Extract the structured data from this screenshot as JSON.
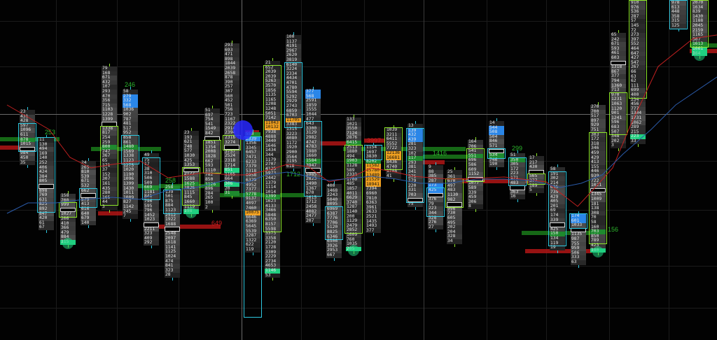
{
  "chart_data": {
    "type": "table",
    "colors": {
      "value_area_cyan": "#2ec8e0",
      "value_area_lime": "#8ee82a",
      "ask_imbalance": "#1f7ee8",
      "bid_imbalance": "#f0a020",
      "volume_green": "#1a7a1a",
      "volume_red": "#b01515",
      "close_marker": "#20d080",
      "ma_red": "#c02020",
      "ma_blue": "#2a5aa8",
      "poc_outline": "#dddddd"
    },
    "labels": [
      "253",
      "246",
      "258",
      "649",
      "1712",
      "3997",
      "1416",
      "299",
      "156"
    ],
    "columns": [
      {
        "values": [
          23,
          431,
          428,
          597,
          1096,
          611,
          878,
          1015,
          null,
          984,
          450,
          35
        ],
        "hl": [
          [
            6,
            "g"
          ]
        ]
      },
      {
        "values": [
          11,
          130,
          494,
          169,
          140,
          252,
          406,
          424,
          384,
          805,
          null,
          898,
          769,
          631,
          825,
          892,
          847,
          420,
          61,
          67
        ],
        "hl": []
      },
      {
        "values": [
          158,
          708,
          999,
          null,
          1027,
          206,
          410,
          366,
          479,
          884,
          115
        ],
        "hl": [
          [
            10,
            "c"
          ]
        ]
      },
      {
        "values": [
          24,
          265,
          810,
          539,
          671,
          532,
          662,
          null,
          579,
          413,
          616,
          640,
          679,
          140
        ],
        "hl": []
      },
      {
        "values": [
          79,
          168,
          671,
          432,
          107,
          293,
          470,
          356,
          715,
          1103,
          1228,
          1399,
          null,
          1338,
          817,
          254,
          259,
          800,
          747,
          367,
          65,
          171,
          37,
          152,
          307,
          161,
          435,
          280,
          165,
          44,
          3
        ],
        "hl": [
          [
            17,
            "g"
          ]
        ]
      },
      {
        "values": [
          58,
          279,
          332,
          568,
          1036,
          902,
          787,
          481,
          517,
          952,
          858,
          861,
          1480,
          1569,
          1338,
          1123,
          1275,
          1020,
          1190,
          1096,
          1399,
          1430,
          1011,
          1009,
          827,
          1142,
          245,
          7
        ],
        "hl": [
          [
            1,
            "b"
          ],
          [
            2,
            "b"
          ],
          [
            3,
            "b"
          ],
          [
            12,
            "g"
          ]
        ]
      },
      {
        "values": [
          49,
          75,
          17,
          38,
          310,
          506,
          509,
          669,
          1181,
          841,
          796,
          595,
          796,
          1452,
          1023,
          null,
          2211,
          323,
          409,
          292
        ],
        "hl": [
          [
            7,
            "g"
          ]
        ]
      },
      {
        "values": [
          258,
          139,
          501,
          875,
          884,
          1123,
          2512,
          1922,
          1688,
          null,
          2548,
          2097,
          1618,
          1141,
          1125,
          1024,
          474,
          841,
          323,
          28
        ],
        "hl": [
          [
            0,
            "g"
          ]
        ]
      },
      {
        "values": [
          23,
          193,
          621,
          748,
          577,
          1030,
          425,
          1353,
          null,
          2177,
          1588,
          1625,
          1826,
          1115,
          845,
          1660,
          1119,
          198
        ],
        "hl": [
          [
            11,
            "g"
          ],
          [
            17,
            "c"
          ]
        ]
      },
      {
        "values": [
          51,
          697,
          754,
          541,
          1549,
          842,
          null,
          1851,
          1354,
          2008,
          1828,
          662,
          593,
          1110,
          782,
          850,
          1126,
          896,
          284,
          265,
          100,
          2
        ],
        "hl": [
          [
            16,
            "g"
          ]
        ]
      },
      {
        "values": [
          293,
          693,
          471,
          898,
          1844,
          2039,
          2658,
          878,
          390,
          257,
          307,
          560,
          452,
          501,
          756,
          723,
          1167,
          2322,
          2914,
          2394,
          2316,
          3274,
          null,
          3757,
          2524,
          2318,
          1714,
          851,
          1165,
          664,
          306,
          20,
          31
        ],
        "hl": [
          [
            27,
            "c"
          ],
          [
            30,
            "c"
          ],
          [
            32,
            "g"
          ]
        ]
      },
      {
        "values": [
          550,
          2339,
          1356,
          3345,
          6457,
          7471,
          6233,
          7379,
          5318,
          6958,
          6329,
          4952,
          7377,
          5778,
          9137,
          4097,
          7460,
          10075,
          6646,
          6369,
          5645,
          5539,
          3287,
          1322,
          622,
          119
        ],
        "hl": [
          [
            0,
            "g"
          ],
          [
            1,
            "b"
          ],
          [
            13,
            "g"
          ],
          [
            17,
            "o"
          ]
        ]
      },
      {
        "values": [
          21,
          652,
          2039,
          2039,
          5263,
          3570,
          1856,
          1135,
          1165,
          1208,
          1248,
          5051,
          7142,
          11043,
          10132,
          7938,
          4888,
          3440,
          1646,
          1434,
          344,
          1179,
          2707,
          4125,
          5973,
          2442,
          1379,
          1114,
          1014,
          1399,
          1623,
          4133,
          3466,
          5848,
          6350,
          8157,
          5598,
          3373,
          3358,
          2120,
          1728,
          3309,
          2229,
          2734,
          4653,
          1146,
          53
        ],
        "hl": [
          [
            13,
            "o"
          ],
          [
            14,
            "o"
          ],
          [
            29,
            "g"
          ],
          [
            45,
            "c"
          ]
        ]
      },
      {
        "values": [
          100,
          1137,
          4191,
          2967,
          2620,
          3819,
          6140,
          3224,
          2334,
          4434,
          4701,
          4780,
          5594,
          5292,
          2929,
          2743,
          6859,
          6703,
          11705,
          3383,
          1315,
          3223,
          4080,
          1172,
          1920,
          2900,
          3564,
          3195,
          618
        ],
        "hl": [
          [
            18,
            "o"
          ]
        ]
      },
      {
        "values": [
          377,
          568,
          2591,
          1859,
          1555,
          1044,
          477,
          643,
          3300,
          3129,
          2982,
          4747,
          4783,
          1980,
          1660,
          1584,
          3947,
          null,
          5985,
          2823,
          3490,
          1367,
          670,
          1615,
          1712,
          2458,
          4082,
          2477,
          207
        ],
        "hl": [
          [
            0,
            "b"
          ],
          [
            1,
            "b"
          ],
          [
            15,
            "g"
          ]
        ]
      },
      {
        "values": [
          400,
          1468,
          2243,
          5040,
          8095,
          6969,
          6387,
          7776,
          7706,
          5120,
          8825,
          6346,
          6506,
          3926,
          2953,
          667
        ],
        "hl": []
      },
      {
        "values": [
          133,
          1021,
          3550,
          7124,
          2876,
          6415,
          2513,
          1880,
          494,
          1903,
          1128,
          589,
          2331,
          1700,
          485,
          1857,
          4011,
          6629,
          3740,
          1287,
          1140,
          200,
          1129,
          2479,
          2852,
          1609,
          760,
          1035,
          205
        ],
        "hl": [
          [
            5,
            "g"
          ],
          [
            9,
            "g"
          ],
          [
            28,
            "c"
          ]
        ]
      },
      {
        "values": [
          1154,
          1697,
          3830,
          8202,
          11582,
          15780,
          13489,
          21529,
          18941,
          7394,
          6960,
          7810,
          6363,
          3961,
          2633,
          2521,
          1435,
          1493,
          377
        ],
        "hl": [
          [
            3,
            "g"
          ],
          [
            4,
            "o"
          ],
          [
            5,
            "o"
          ],
          [
            6,
            "o"
          ],
          [
            7,
            "o"
          ],
          [
            8,
            "o"
          ]
        ]
      },
      {
        "values": [
          1039,
          3211,
          6411,
          5552,
          7722,
          12136,
          16681,
          8436,
          4740,
          1788,
          41
        ],
        "hl": [
          [
            5,
            "o"
          ],
          [
            6,
            "o"
          ]
        ]
      },
      {
        "values": [
          13,
          139,
          432,
          439,
          281,
          323,
          102,
          117,
          293,
          381,
          341,
          375,
          179,
          220,
          331,
          703,
          null,
          75
        ],
        "hl": [
          [
            1,
            "b"
          ],
          [
            2,
            "b"
          ],
          [
            3,
            "b"
          ],
          [
            7,
            "g"
          ]
        ]
      },
      {
        "values": [
          9,
          88,
          385,
          287,
          173,
          425,
          null,
          376,
          79,
          223,
          344,
          328,
          276,
          27
        ],
        "hl": [
          [
            4,
            "b"
          ],
          [
            5,
            "b"
          ]
        ]
      },
      {
        "values": [
          25,
          361,
          670,
          497,
          483,
          1130,
          982,
          null,
          996,
          730,
          605,
          495,
          202,
          204,
          328,
          34
        ],
        "hl": []
      },
      {
        "values": [
          164,
          706,
          541,
          551,
          696,
          586,
          609,
          1152,
          null,
          1077,
          589,
          339,
          459,
          306,
          8
        ],
        "hl": [
          [
            3,
            "g"
          ]
        ]
      },
      {
        "values": [
          14,
          544,
          508,
          504,
          846,
          571,
          null,
          534,
          746,
          190
        ],
        "hl": [
          [
            1,
            "b"
          ],
          [
            2,
            "b"
          ],
          [
            7,
            "g"
          ]
        ]
      },
      {
        "values": [
          51,
          350,
          305,
          172,
          223,
          171,
          483,
          null,
          363,
          16
        ],
        "hl": [
          [
            1,
            "g"
          ]
        ]
      },
      {
        "values": [
          17,
          217,
          430,
          null,
          565,
          377,
          189,
          5
        ],
        "hl": []
      },
      {
        "values": [
          58,
          191,
          302,
          214,
          635,
          739,
          429,
          405,
          201,
          69,
          174,
          339,
          null,
          425,
          150,
          134,
          119,
          19
        ],
        "hl": [
          [
            14,
            "g"
          ]
        ]
      },
      {
        "values": [
          174,
          601,
          1033,
          null,
          1135,
          987,
          755,
          959,
          506,
          333,
          63
        ],
        "hl": [
          [
            0,
            "b"
          ],
          [
            1,
            "b"
          ]
        ]
      },
      {
        "values": [
          270,
          700,
          517,
          897,
          929,
          751,
          303,
          172,
          318,
          346,
          459,
          429,
          413,
          155,
          446,
          939,
          722,
          1021,
          null,
          1345,
          1009,
          181,
          138,
          308,
          70,
          58,
          160,
          703,
          850,
          789,
          423,
          180
        ],
        "hl": [
          [
            27,
            "g"
          ],
          [
            31,
            "c"
          ]
        ]
      },
      {
        "values": [
          65,
          242,
          671,
          593,
          461,
          603,
          null,
          1318,
          867,
          377,
          794,
          1360,
          713,
          970,
          1231,
          1063,
          1120,
          901,
          1241,
          596,
          683,
          507,
          348,
          202,
          3
        ],
        "hl": []
      },
      {
        "values": [
          910,
          976,
          536,
          287,
          57,
          145,
          72,
          273,
          397,
          552,
          464,
          647,
          427,
          547,
          267,
          66,
          63,
          62,
          111,
          699,
          400,
          234,
          456,
          777,
          1304,
          1731,
          1062,
          289,
          215,
          223,
          33
        ],
        "hl": [
          [
            29,
            "c"
          ]
        ]
      },
      {
        "values": [
          978,
          613,
          448,
          358,
          315,
          125
        ],
        "hl": []
      },
      {
        "values": [
          2070,
          1634,
          839,
          1430,
          1188,
          2045,
          2159,
          1165,
          507,
          1613,
          1061,
          164
        ],
        "hl": [
          [
            9,
            "g"
          ],
          [
            10,
            "c"
          ],
          [
            11,
            "c"
          ]
        ]
      }
    ]
  }
}
